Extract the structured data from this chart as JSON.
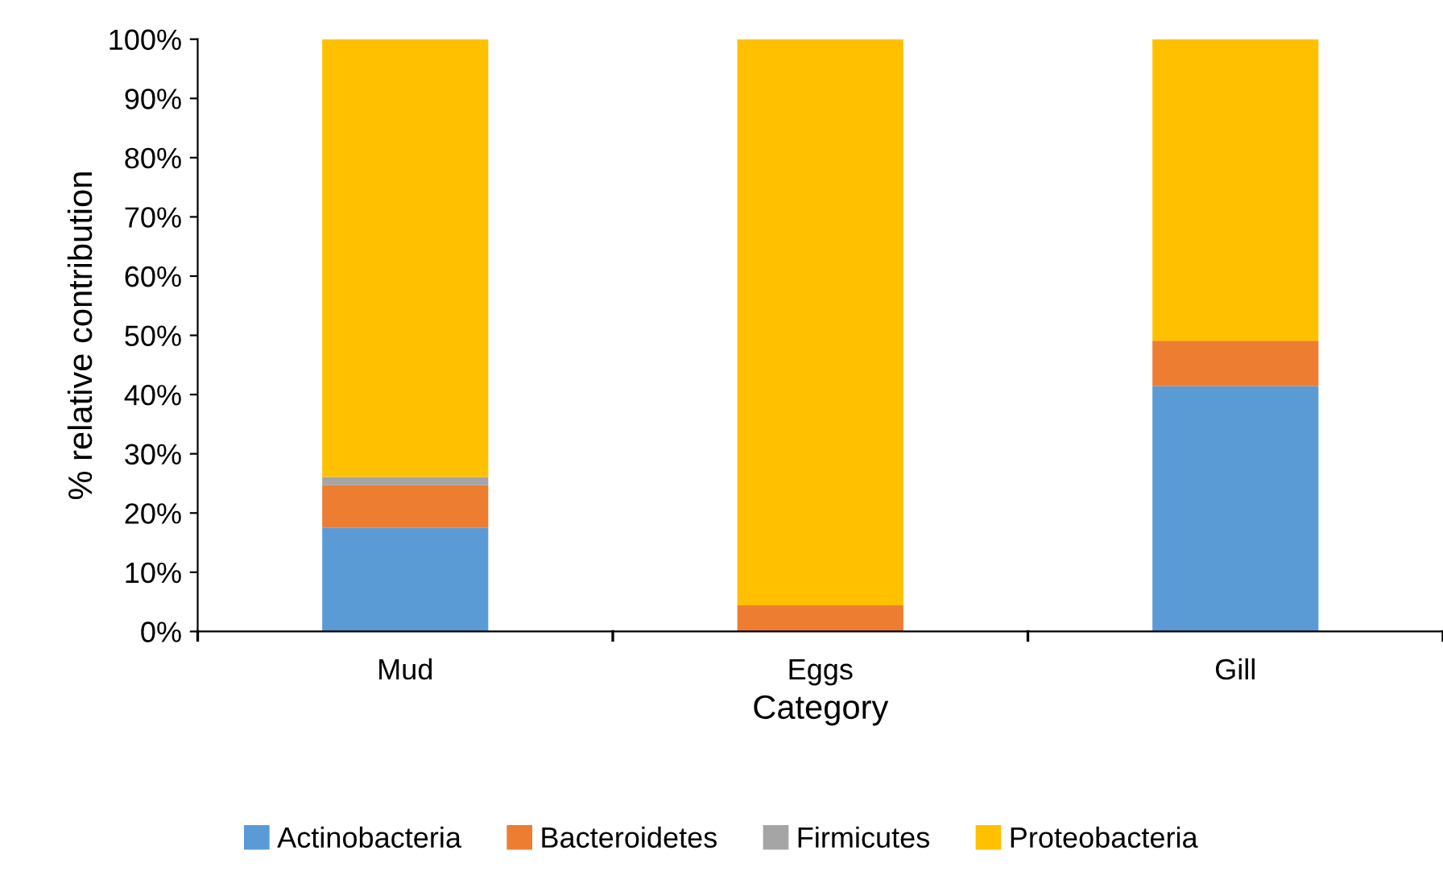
{
  "chart_data": {
    "type": "bar",
    "stacked": true,
    "xlabel": "Category",
    "ylabel": "% relative contribution",
    "categories": [
      "Mud",
      "Eggs",
      "Gill"
    ],
    "series": [
      {
        "name": "Actinobacteria",
        "color": "#5b9bd5",
        "values": [
          17.5,
          0,
          41.4
        ]
      },
      {
        "name": "Bacteroidetes",
        "color": "#ed7d31",
        "values": [
          7.2,
          4.4,
          7.7
        ]
      },
      {
        "name": "Firmicutes",
        "color": "#a5a5a5",
        "values": [
          1.4,
          0,
          0
        ]
      },
      {
        "name": "Proteobacteria",
        "color": "#ffc000",
        "values": [
          73.9,
          95.6,
          50.9
        ]
      }
    ],
    "ylim": [
      0,
      100
    ],
    "yticks": [
      {
        "value": 0,
        "label": "0%"
      },
      {
        "value": 10,
        "label": "10%"
      },
      {
        "value": 20,
        "label": "20%"
      },
      {
        "value": 30,
        "label": "30%"
      },
      {
        "value": 40,
        "label": "40%"
      },
      {
        "value": 50,
        "label": "50%"
      },
      {
        "value": 60,
        "label": "60%"
      },
      {
        "value": 70,
        "label": "70%"
      },
      {
        "value": 80,
        "label": "80%"
      },
      {
        "value": 90,
        "label": "90%"
      },
      {
        "value": 100,
        "label": "100%"
      }
    ],
    "grid": false,
    "legend": "bottom"
  }
}
